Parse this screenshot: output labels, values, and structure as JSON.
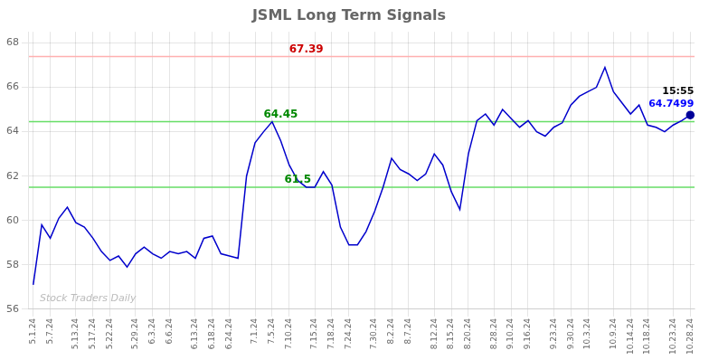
{
  "chart_data": {
    "type": "line",
    "title": "JSML Long Term Signals",
    "categories": [
      "5.1.24",
      null,
      "5.7.24",
      null,
      null,
      "5.13.24",
      null,
      "5.17.24",
      null,
      "5.22.24",
      null,
      null,
      "5.29.24",
      null,
      "6.3.24",
      null,
      "6.6.24",
      null,
      null,
      "6.13.24",
      null,
      "6.18.24",
      null,
      "6.24.24",
      null,
      null,
      "7.1.24",
      null,
      "7.5.24",
      null,
      "7.10.24",
      null,
      null,
      "7.15.24",
      null,
      "7.18.24",
      null,
      "7.24.24",
      null,
      null,
      "7.30.24",
      null,
      "8.2.24",
      null,
      "8.7.24",
      null,
      null,
      "8.12.24",
      null,
      "8.15.24",
      null,
      "8.20.24",
      null,
      null,
      "8.28.24",
      null,
      "9.10.24",
      null,
      "9.16.24",
      null,
      null,
      "9.23.24",
      null,
      "9.30.24",
      null,
      "10.3.24",
      null,
      null,
      "10.9.24",
      null,
      "10.14.24",
      null,
      "10.18.24",
      null,
      null,
      "10.23.24",
      null,
      "10.28.24"
    ],
    "values": [
      57.1,
      59.8,
      59.2,
      60.1,
      60.6,
      59.9,
      59.7,
      59.2,
      58.6,
      58.2,
      58.4,
      57.9,
      58.5,
      58.8,
      58.5,
      58.3,
      58.6,
      58.5,
      58.6,
      58.3,
      59.2,
      59.3,
      58.5,
      58.4,
      58.3,
      62.0,
      63.5,
      64.0,
      64.45,
      63.6,
      62.5,
      61.8,
      61.5,
      61.5,
      62.2,
      61.6,
      59.7,
      58.9,
      58.9,
      59.5,
      60.4,
      61.5,
      62.8,
      62.3,
      62.1,
      61.8,
      62.1,
      63.0,
      62.5,
      61.3,
      60.5,
      63.0,
      64.5,
      64.8,
      64.3,
      65.0,
      64.6,
      64.2,
      64.5,
      64.0,
      63.8,
      64.2,
      64.4,
      65.2,
      65.6,
      65.8,
      66.0,
      66.9,
      65.8,
      65.3,
      64.8,
      65.2,
      64.3,
      64.2,
      64.0,
      64.3,
      64.5,
      64.7499
    ],
    "color": "#0000cc",
    "last_point_color": "#000099",
    "ylim": [
      56,
      68.5
    ],
    "yticks": [
      56,
      58,
      60,
      62,
      64,
      66,
      68
    ],
    "grid": true,
    "reference_lines": [
      {
        "value": 67.39,
        "color": "#ffb0b0",
        "text": "67.39",
        "text_color": "#cc0000"
      },
      {
        "value": 64.45,
        "color": "#66dd66",
        "text": "64.45",
        "text_color": "#008800"
      },
      {
        "value": 61.5,
        "color": "#66dd66",
        "text": "61.5",
        "text_color": "#008800"
      }
    ],
    "annotations": [
      {
        "text": "15:55",
        "color": "#000000"
      },
      {
        "text": "64.7499",
        "color": "#0000ff"
      }
    ],
    "watermark": "Stock Traders Daily"
  }
}
